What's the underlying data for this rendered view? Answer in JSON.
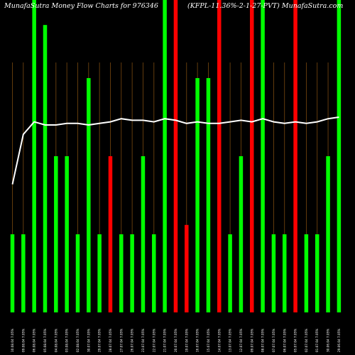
{
  "header": {
    "left_title": "MunafaSutra  Money Flow  Charts for 976346",
    "right_title": "(KFPL-11.36%-2-1-27-PVT) MunafaSutra.com"
  },
  "chart_data": {
    "type": "bar",
    "title": "Money Flow Charts for 976346",
    "ylim": [
      0,
      100
    ],
    "bar_colors": {
      "up": "#00ff00",
      "down": "#ff0000"
    },
    "gridline_color": "#7a4a10",
    "line_color": "#ffffff",
    "background": "#000000",
    "categories": [
      "10.08.04 7.05%",
      "09.08.04 7.05%",
      "06.08.04 7.05%",
      "05.08.04 7.05%",
      "04.08.04 7.05%",
      "03.08.04 7.05%",
      "02.08.04 7.05%",
      "30.07.04 7.05%",
      "29.07.04 7.05%",
      "28.07.04 7.05%",
      "27.07.04 7.05%",
      "26.07.04 7.05%",
      "23.07.04 7.05%",
      "22.07.04 7.05%",
      "21.07.04 7.05%",
      "20.07.04 7.05%",
      "19.07.04 7.05%",
      "16.07.04 7.05%",
      "15.07.04 7.05%",
      "14.07.04 7.05%",
      "13.07.04 7.05%",
      "12.07.04 7.05%",
      "09.07.04 7.05%",
      "08.07.04 7.05%",
      "07.07.04 7.05%",
      "06.07.04 7.05%",
      "05.07.04 7.05%",
      "02.07.04 7.05%",
      "01.07.04 7.05%",
      "30.06.04 7.05%",
      "29.06.04 7.05%"
    ],
    "values": [
      25,
      25,
      100,
      92,
      50,
      50,
      25,
      75,
      25,
      50,
      25,
      25,
      50,
      25,
      100,
      100,
      28,
      75,
      75,
      100,
      25,
      50,
      100,
      100,
      25,
      25,
      100,
      25,
      25,
      50,
      100
    ],
    "directions": [
      "up",
      "up",
      "up",
      "up",
      "up",
      "up",
      "up",
      "up",
      "up",
      "down",
      "up",
      "up",
      "up",
      "up",
      "up",
      "down",
      "down",
      "up",
      "up",
      "down",
      "up",
      "up",
      "down",
      "up",
      "up",
      "up",
      "down",
      "up",
      "up",
      "up",
      "up"
    ],
    "line_values": [
      41,
      57,
      61,
      60,
      60,
      60.5,
      60.5,
      60,
      60.5,
      61,
      62,
      61.5,
      61.5,
      61,
      62,
      61.5,
      60.5,
      61,
      60.5,
      60.5,
      61,
      61.5,
      61,
      62,
      61,
      60.5,
      61,
      60.5,
      61,
      62,
      62.5
    ]
  }
}
